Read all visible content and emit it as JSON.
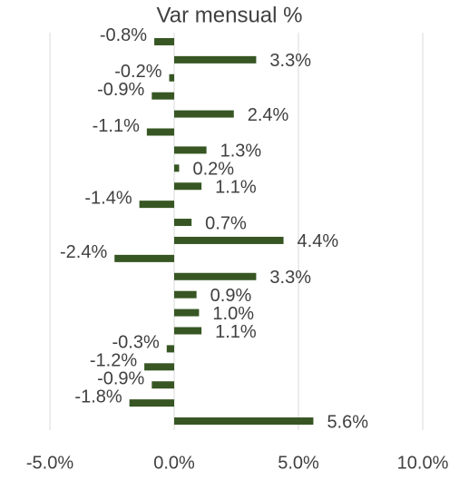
{
  "chart_data": {
    "type": "barh",
    "title": "Var mensual %",
    "categories": [
      null,
      null,
      null,
      null,
      null,
      null,
      null,
      null,
      null,
      null,
      null,
      null,
      null,
      null,
      null,
      null,
      null,
      null,
      null,
      null,
      null,
      null
    ],
    "values": [
      -0.8,
      3.3,
      -0.2,
      -0.9,
      2.4,
      -1.1,
      1.3,
      0.2,
      1.1,
      -1.4,
      0.7,
      4.4,
      -2.4,
      3.3,
      0.9,
      1.0,
      1.1,
      -0.3,
      -1.2,
      -0.9,
      -1.8,
      5.6
    ],
    "value_labels": [
      "-0.8%",
      "3.3%",
      "-0.2%",
      "-0.9%",
      "2.4%",
      "-1.1%",
      "1.3%",
      "0.2%",
      "1.1%",
      "-1.4%",
      "0.7%",
      "4.4%",
      "-2.4%",
      "3.3%",
      "0.9%",
      "1.0%",
      "1.1%",
      "-0.3%",
      "-1.2%",
      "-0.9%",
      "-1.8%",
      "5.6%"
    ],
    "color": "#375623",
    "xlim": [
      -5,
      10
    ],
    "xticks": [
      {
        "value": -5,
        "label": "-5.0%"
      },
      {
        "value": 0,
        "label": "0.0%"
      },
      {
        "value": 5,
        "label": "5.0%"
      },
      {
        "value": 10,
        "label": "10.0%"
      }
    ],
    "grid": true
  }
}
